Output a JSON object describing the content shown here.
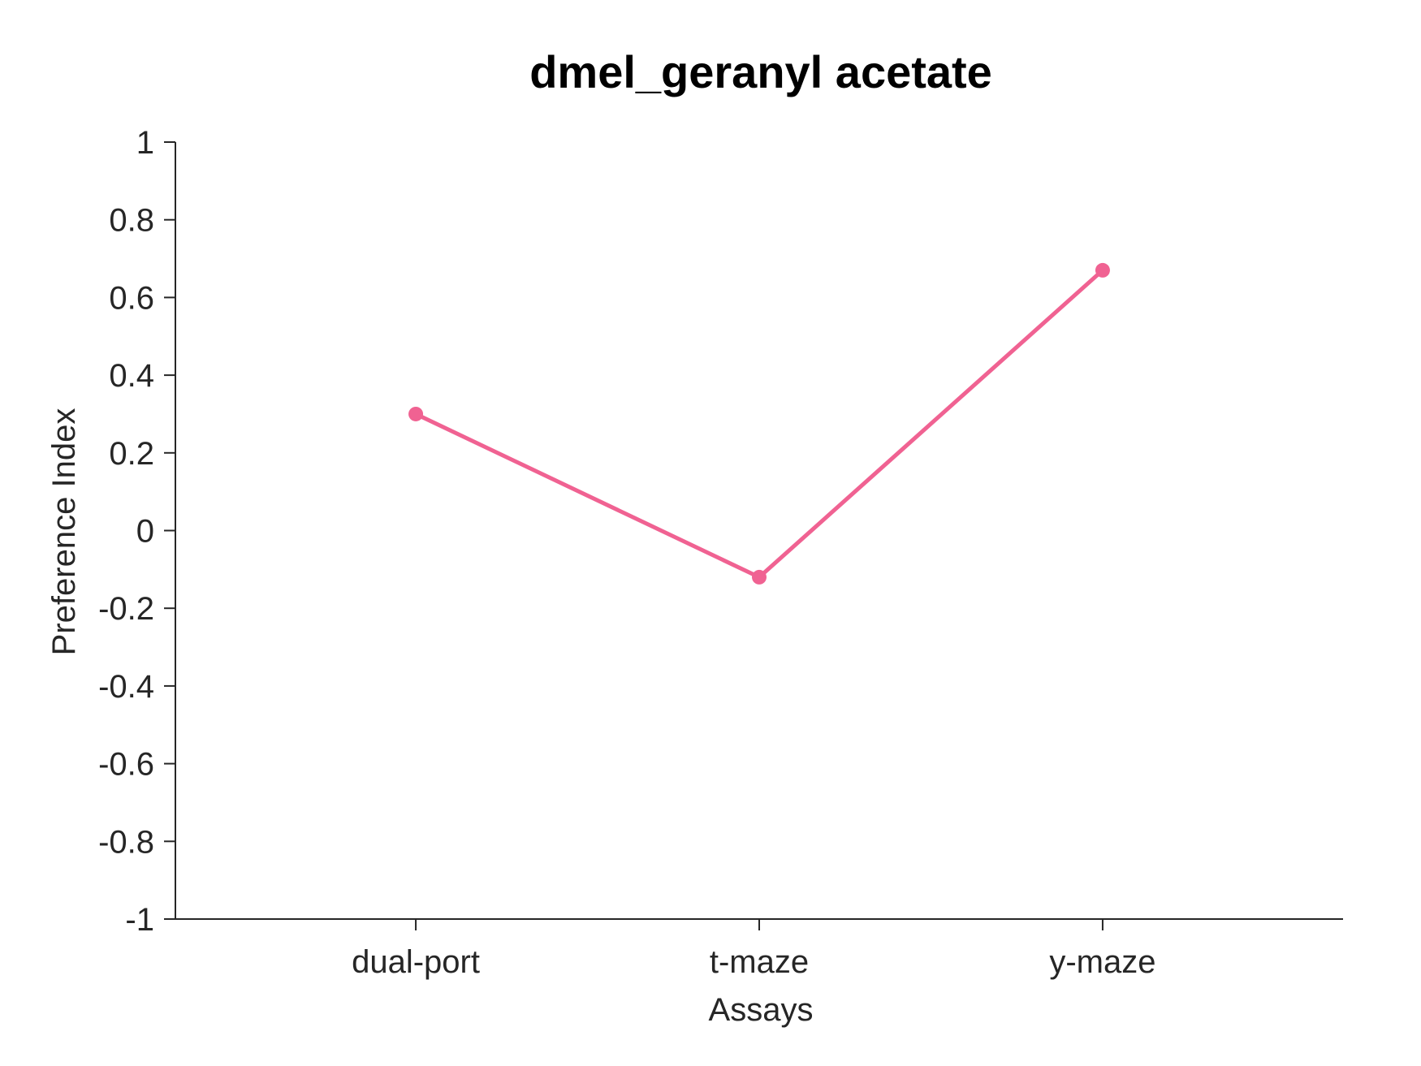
{
  "chart_data": {
    "type": "line",
    "title": "dmel_geranyl acetate",
    "xlabel": "Assays",
    "ylabel": "Preference Index",
    "categories": [
      "dual-port",
      "t-maze",
      "y-maze"
    ],
    "series": [
      {
        "values": [
          0.3,
          -0.12,
          0.67
        ],
        "color": "#f06292"
      }
    ],
    "ylim": [
      -1,
      1
    ],
    "yticks": [
      -1,
      -0.8,
      -0.6,
      -0.4,
      -0.2,
      0,
      0.2,
      0.4,
      0.6,
      0.8,
      1
    ],
    "ytick_labels": [
      "-1",
      "-0.8",
      "-0.6",
      "-0.4",
      "-0.2",
      "0",
      "0.2",
      "0.4",
      "0.6",
      "0.8",
      "1"
    ],
    "grid": false,
    "legend": "none"
  }
}
